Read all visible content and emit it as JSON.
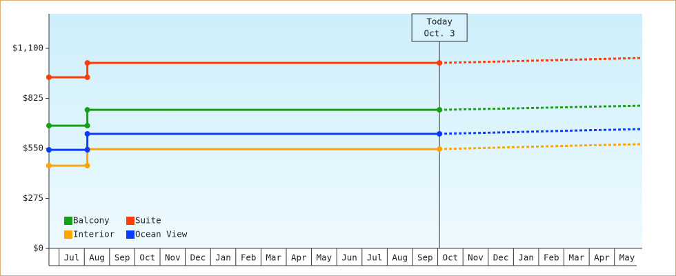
{
  "chart_data": {
    "type": "line",
    "ylim": [
      0,
      1290
    ],
    "yticks": [
      {
        "value": 0,
        "label": "$0"
      },
      {
        "value": 275,
        "label": "$275"
      },
      {
        "value": 550,
        "label": "$550"
      },
      {
        "value": 825,
        "label": "$825"
      },
      {
        "value": 1100,
        "label": "$1,100"
      }
    ],
    "xlim": [
      -0.4,
      23.1
    ],
    "categories": [
      "Jul",
      "Aug",
      "Sep",
      "Oct",
      "Nov",
      "Dec",
      "Jan",
      "Feb",
      "Mar",
      "Apr",
      "May",
      "Jun",
      "Jul",
      "Aug",
      "Sep",
      "Oct",
      "Nov",
      "Dec",
      "Jan",
      "Feb",
      "Mar",
      "Apr",
      "May"
    ],
    "x": [
      -0.4,
      1.12,
      1.12,
      15.07
    ],
    "forecast_x": [
      15.07,
      17,
      19,
      21,
      23.1
    ],
    "annotation": {
      "lines": [
        "Today",
        "Oct. 3"
      ],
      "x": 15.07
    },
    "series": [
      {
        "name": "Balcony",
        "color": "#16a016",
        "values": [
          675,
          675,
          762,
          762
        ],
        "forecast": [
          762,
          767,
          773,
          779,
          785
        ]
      },
      {
        "name": "Suite",
        "color": "#ff3c0a",
        "values": [
          941,
          941,
          1020,
          1020
        ],
        "forecast": [
          1020,
          1026,
          1033,
          1040,
          1047
        ]
      },
      {
        "name": "Interior",
        "color": "#ffa500",
        "values": [
          455,
          455,
          546,
          546
        ],
        "forecast": [
          546,
          553,
          560,
          567,
          573
        ]
      },
      {
        "name": "Ocean View",
        "color": "#0a3cff",
        "values": [
          542,
          542,
          630,
          630
        ],
        "forecast": [
          630,
          636,
          643,
          650,
          656
        ]
      }
    ]
  }
}
